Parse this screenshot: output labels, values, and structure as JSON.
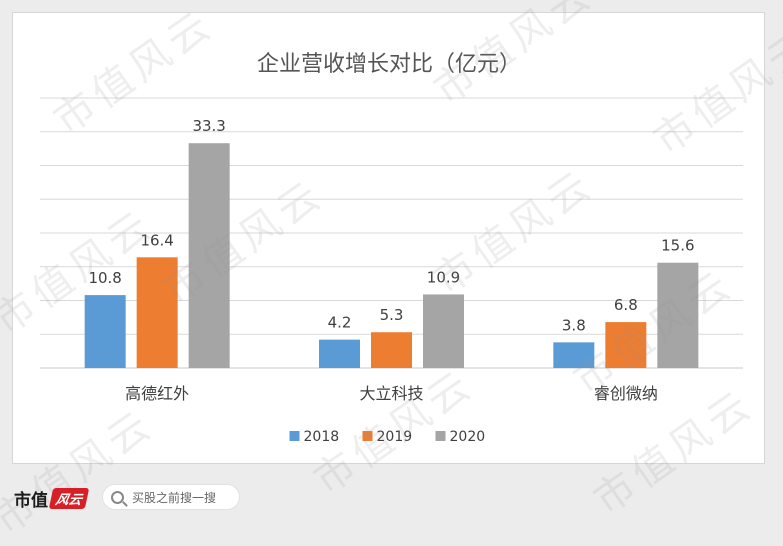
{
  "chart_data": {
    "type": "bar",
    "title": "企业营收增长对比（亿元）",
    "categories": [
      "高德红外",
      "大立科技",
      "睿创微纳"
    ],
    "series": [
      {
        "name": "2018",
        "values": [
          10.8,
          4.2,
          3.8
        ],
        "color": "#5b9bd5"
      },
      {
        "name": "2019",
        "values": [
          16.4,
          5.3,
          6.8
        ],
        "color": "#ed7d31"
      },
      {
        "name": "2020",
        "values": [
          33.3,
          10.9,
          15.6
        ],
        "color": "#a5a5a5"
      }
    ],
    "ylim": [
      0,
      40
    ],
    "gridlines": true,
    "legend": "bottom"
  },
  "watermark": {
    "text": "市值风云"
  },
  "footer": {
    "brand": "市值",
    "brand_mark": "风云",
    "search_placeholder": "买股之前搜一搜"
  }
}
